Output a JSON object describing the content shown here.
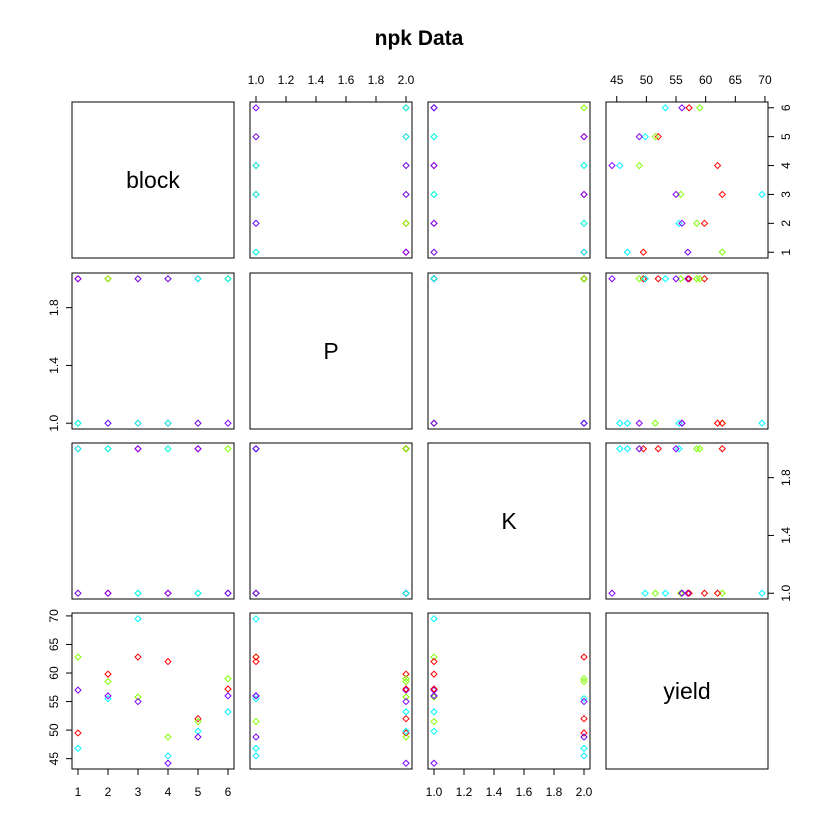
{
  "chart_data": {
    "type": "scatter",
    "title": "npk Data",
    "variables": [
      "block",
      "P",
      "K",
      "yield"
    ],
    "ranges": {
      "block": [
        1,
        6
      ],
      "P": [
        1,
        2
      ],
      "K": [
        1,
        2
      ],
      "yield": [
        44.2,
        69.5
      ]
    },
    "ticks": {
      "block": [
        1,
        2,
        3,
        4,
        5,
        6
      ],
      "P": [
        1.0,
        1.2,
        1.4,
        1.6,
        1.8,
        2.0
      ],
      "K": [
        1.0,
        1.2,
        1.4,
        1.6,
        1.8,
        2.0
      ],
      "yield": [
        45,
        50,
        55,
        60,
        65,
        70
      ]
    },
    "tick_labels": {
      "block": [
        "1",
        "2",
        "3",
        "4",
        "5",
        "6"
      ],
      "P": [
        "1.0",
        "1.2",
        "1.4",
        "1.6",
        "1.8",
        "2.0"
      ],
      "K": [
        "1.0",
        "1.2",
        "1.4",
        "1.6",
        "1.8",
        "2.0"
      ],
      "yield": [
        "45",
        "50",
        "55",
        "60",
        "65",
        "70"
      ]
    },
    "axis_ticks_shown": {
      "block": [
        1,
        2,
        3,
        4,
        5,
        6
      ],
      "P": [
        1.0,
        1.4,
        1.8
      ],
      "K": [
        1.0,
        1.4,
        1.8
      ],
      "yield": [
        45,
        50,
        55,
        60,
        65,
        70
      ]
    },
    "axis_tick_labels_shown": {
      "block": [
        "1",
        "2",
        "3",
        "4",
        "5",
        "6"
      ],
      "P": [
        "1.0",
        "1.4",
        "1.8"
      ],
      "K": [
        "1.0",
        "1.4",
        "1.8"
      ],
      "yield": [
        "45",
        "50",
        "55",
        "60",
        "65",
        "70"
      ]
    },
    "colors": [
      "#FF0000",
      "#80FF00",
      "#00FFFF",
      "#8000FF"
    ],
    "observations": [
      {
        "block": 1,
        "P": 2,
        "K": 2,
        "yield": 49.5,
        "color": 0
      },
      {
        "block": 1,
        "P": 1,
        "K": 1,
        "yield": 62.8,
        "color": 1
      },
      {
        "block": 1,
        "P": 1,
        "K": 2,
        "yield": 46.8,
        "color": 2
      },
      {
        "block": 1,
        "P": 2,
        "K": 1,
        "yield": 57.0,
        "color": 3
      },
      {
        "block": 2,
        "P": 2,
        "K": 1,
        "yield": 59.8,
        "color": 0
      },
      {
        "block": 2,
        "P": 2,
        "K": 2,
        "yield": 58.5,
        "color": 1
      },
      {
        "block": 2,
        "P": 1,
        "K": 2,
        "yield": 55.5,
        "color": 2
      },
      {
        "block": 2,
        "P": 1,
        "K": 1,
        "yield": 56.0,
        "color": 3
      },
      {
        "block": 3,
        "P": 1,
        "K": 2,
        "yield": 62.8,
        "color": 0
      },
      {
        "block": 3,
        "P": 2,
        "K": 1,
        "yield": 55.8,
        "color": 1
      },
      {
        "block": 3,
        "P": 1,
        "K": 1,
        "yield": 69.5,
        "color": 2
      },
      {
        "block": 3,
        "P": 2,
        "K": 2,
        "yield": 55.0,
        "color": 3
      },
      {
        "block": 4,
        "P": 1,
        "K": 1,
        "yield": 62.0,
        "color": 0
      },
      {
        "block": 4,
        "P": 2,
        "K": 2,
        "yield": 48.8,
        "color": 1
      },
      {
        "block": 4,
        "P": 1,
        "K": 2,
        "yield": 45.5,
        "color": 2
      },
      {
        "block": 4,
        "P": 2,
        "K": 1,
        "yield": 44.2,
        "color": 3
      },
      {
        "block": 5,
        "P": 2,
        "K": 2,
        "yield": 52.0,
        "color": 0
      },
      {
        "block": 5,
        "P": 1,
        "K": 1,
        "yield": 51.5,
        "color": 1
      },
      {
        "block": 5,
        "P": 2,
        "K": 1,
        "yield": 49.8,
        "color": 2
      },
      {
        "block": 5,
        "P": 1,
        "K": 2,
        "yield": 48.8,
        "color": 3
      },
      {
        "block": 6,
        "P": 2,
        "K": 1,
        "yield": 57.2,
        "color": 0
      },
      {
        "block": 6,
        "P": 2,
        "K": 2,
        "yield": 59.0,
        "color": 1
      },
      {
        "block": 6,
        "P": 2,
        "K": 1,
        "yield": 53.2,
        "color": 2
      },
      {
        "block": 6,
        "P": 1,
        "K": 1,
        "yield": 56.0,
        "color": 3
      }
    ]
  }
}
